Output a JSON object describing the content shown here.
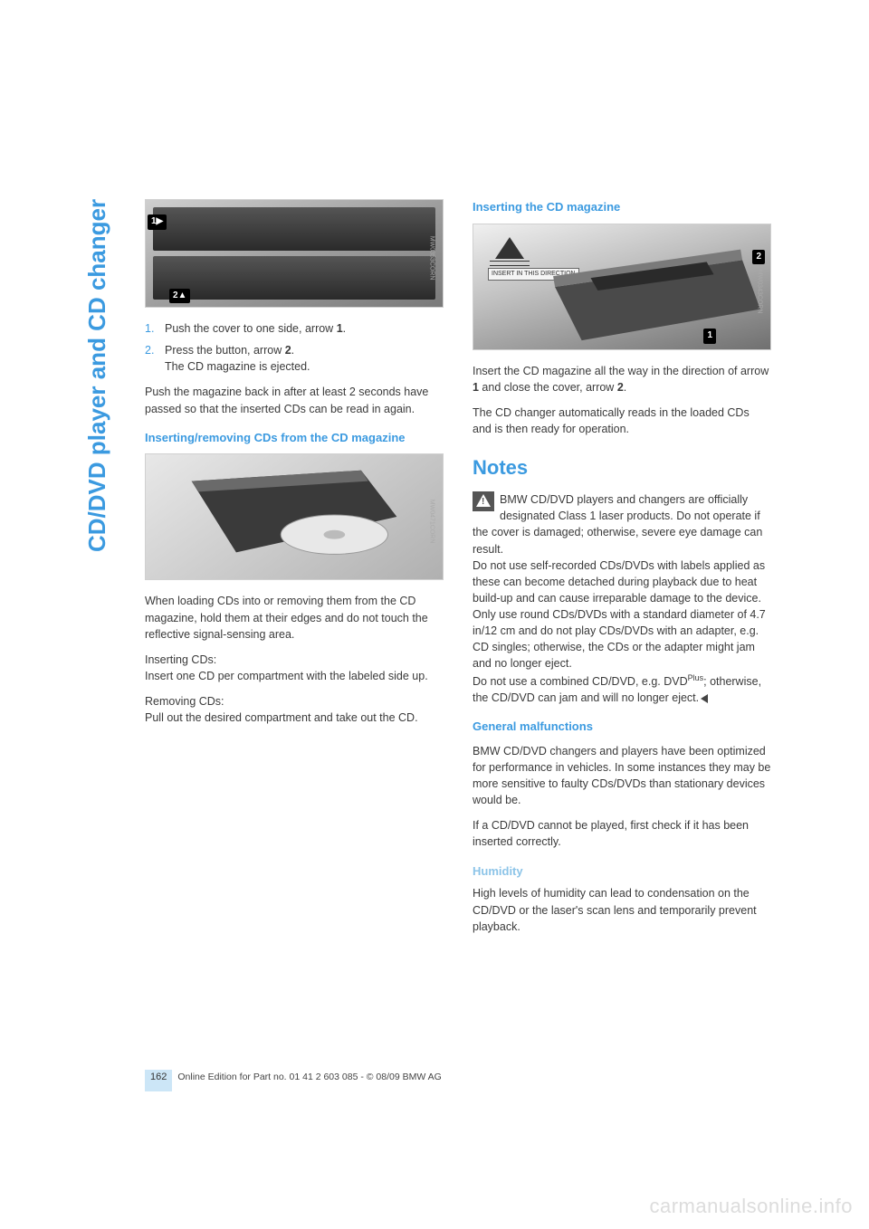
{
  "side_tab": "CD/DVD player and CD changer",
  "left": {
    "fig1_code": "MW0353CORN",
    "step1_num": "1.",
    "step1_a": "Push the cover to one side, arrow ",
    "step1_b": "1",
    "step1_c": ".",
    "step2_num": "2.",
    "step2_a": "Press the button, arrow ",
    "step2_b": "2",
    "step2_c": ".",
    "step2_sub": "The CD magazine is ejected.",
    "p1": "Push the magazine back in after at least 2 seconds have passed so that the inserted CDs can be read in again.",
    "h1": "Inserting/removing CDs from the CD magazine",
    "fig2_code": "MW0471CORN",
    "p2": "When loading CDs into or removing them from the CD magazine, hold them at their edges and do not touch the reflective signal-sensing area.",
    "p3a": "Inserting CDs:",
    "p3b": "Insert one CD per compartment with the labeled side up.",
    "p4a": "Removing CDs:",
    "p4b": "Pull out the desired compartment and take out the CD."
  },
  "right": {
    "h1": "Inserting the CD magazine",
    "insert_label": "INSERT IN THIS DIRECTION",
    "fig_code": "MW0343CORN",
    "p1a": "Insert the CD magazine all the way in the direction of arrow ",
    "p1b": "1",
    "p1c": " and close the cover, arrow ",
    "p1d": "2",
    "p1e": ".",
    "p2": "The CD changer automatically reads in the loaded CDs and is then ready for operation.",
    "h_notes": "Notes",
    "warn_a": "BMW CD/DVD players and changers are officially designated Class 1 laser products. Do not operate if the cover is damaged; otherwise, severe eye damage can result.",
    "warn_b": "Do not use self-recorded CDs/DVDs with labels applied as these can become detached during playback due to heat build-up and can cause irreparable damage to the device.",
    "warn_c": "Only use round CDs/DVDs with a standard diameter of 4.7 in/12 cm and do not play CDs/DVDs with an adapter, e.g. CD singles; otherwise, the CDs or the adapter might jam and no longer eject.",
    "warn_d1": "Do not use a combined CD/DVD, e.g. DVD",
    "warn_d_sup": "Plus",
    "warn_d2": "; otherwise, the CD/DVD can jam and will no longer eject.",
    "h_gm": "General malfunctions",
    "gm1": "BMW CD/DVD changers and players have been optimized for performance in vehicles. In some instances they may be more sensitive to faulty CDs/DVDs than stationary devices would be.",
    "gm2": "If a CD/DVD cannot be played, first check if it has been inserted correctly.",
    "h_hum": "Humidity",
    "hum1": "High levels of humidity can lead to condensation on the CD/DVD or the laser's scan lens and temporarily prevent playback."
  },
  "footer": {
    "page_num": "162",
    "text": "Online Edition for Part no. 01 41 2 603 085 - © 08/09 BMW AG"
  },
  "watermark": "carmanualsonline.info",
  "colors": {
    "accent": "#3b9ae0",
    "light_accent": "#8cc4e8",
    "text": "#3a3a3a",
    "footer_box": "#cce6f7",
    "watermark": "#dcdcdc"
  }
}
